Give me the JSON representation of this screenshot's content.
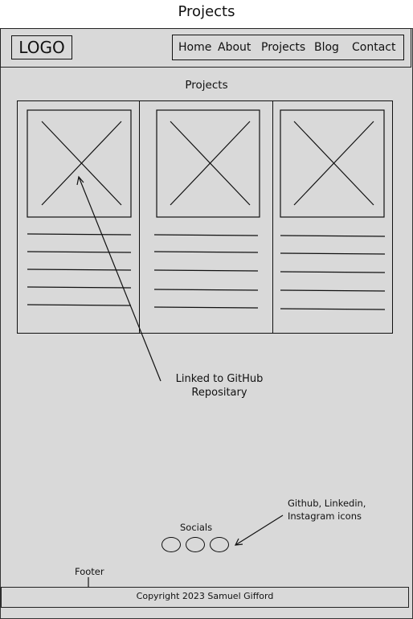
{
  "page": {
    "title": "Projects"
  },
  "header": {
    "logo": "LOGO",
    "nav": [
      "Home",
      "About",
      "Projects",
      "Blog",
      "Contact"
    ]
  },
  "main": {
    "section_title": "Projects",
    "cards": [
      {
        "image": "image-placeholder-icon"
      },
      {
        "image": "image-placeholder-icon"
      },
      {
        "image": "image-placeholder-icon"
      }
    ]
  },
  "annotations": {
    "link_note_line1": "Linked to GitHub",
    "link_note_line2": "Repositary",
    "socials_label": "Socials",
    "icons_note_line1": "Github, Linkedin,",
    "icons_note_line2": "Instagram icons",
    "footer_label": "Footer"
  },
  "footer": {
    "copyright": "Copyright 2023 Samuel Gifford"
  }
}
